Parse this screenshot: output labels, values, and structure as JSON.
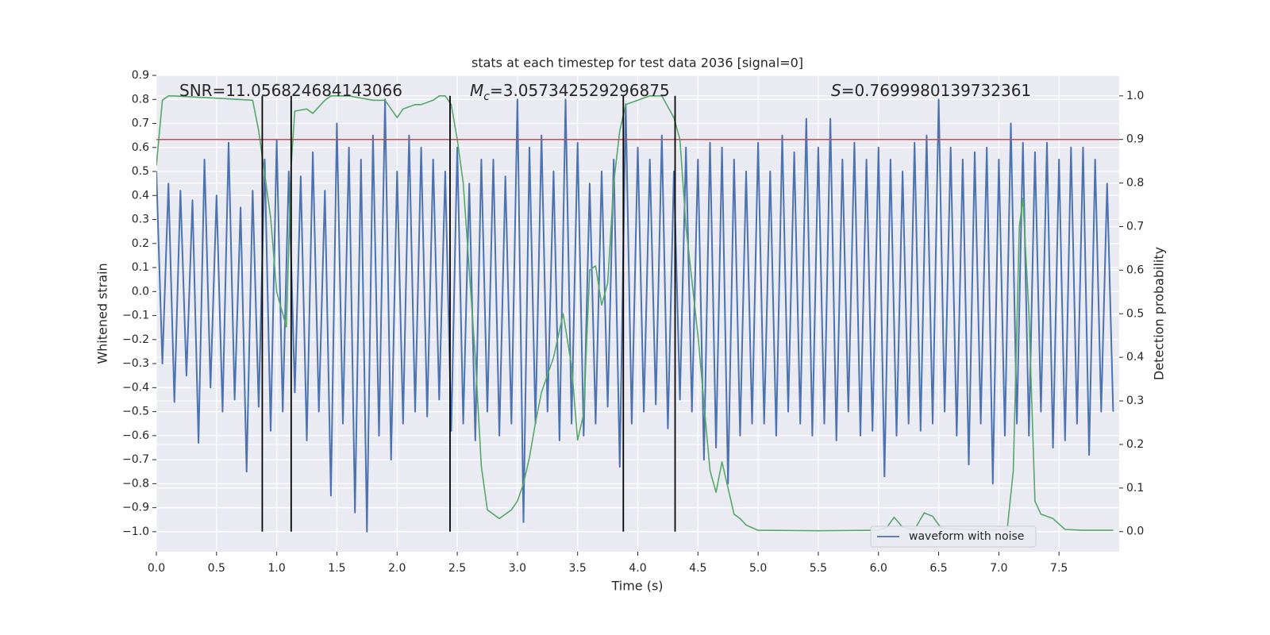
{
  "chart_data": {
    "type": "line",
    "title": "stats at each timestep for test data 2036 [signal=0]",
    "x_label": "Time (s)",
    "y_label": "Whitened strain",
    "y2_label": "Detection probability",
    "xlim": [
      0,
      8.0
    ],
    "ylim": [
      -1.083,
      0.9
    ],
    "y2lim": [
      -0.046,
      1.047
    ],
    "xticks": [
      {
        "value": 0,
        "label": "0.0"
      },
      0.5,
      {
        "value": 1,
        "label": "1.0"
      },
      1.5,
      {
        "value": 2,
        "label": "2.0"
      },
      2.5,
      {
        "value": 3,
        "label": "3.0"
      },
      3.5,
      {
        "value": 4,
        "label": "4.0"
      },
      4.5,
      {
        "value": 5,
        "label": "5.0"
      },
      5.5,
      {
        "value": 6,
        "label": "6.0"
      },
      6.5,
      {
        "value": 7,
        "label": "7.0"
      },
      7.5
    ],
    "yticks": [
      {
        "value": -1,
        "label": "−1.0"
      },
      {
        "value": -0.9,
        "label": "−0.9"
      },
      {
        "value": -0.8,
        "label": "−0.8"
      },
      {
        "value": -0.7,
        "label": "−0.7"
      },
      {
        "value": -0.6,
        "label": "−0.6"
      },
      {
        "value": -0.5,
        "label": "−0.5"
      },
      {
        "value": -0.4,
        "label": "−0.4"
      },
      {
        "value": -0.3,
        "label": "−0.3"
      },
      {
        "value": -0.2,
        "label": "−0.2"
      },
      {
        "value": -0.1,
        "label": "−0.1"
      },
      {
        "value": 0,
        "label": "0.0"
      },
      0.1,
      0.2,
      0.3,
      0.4,
      0.5,
      0.6,
      0.7,
      0.8,
      0.9
    ],
    "y2ticks": [
      {
        "value": 0,
        "label": "0.0"
      },
      0.1,
      0.2,
      0.3,
      0.4,
      0.5,
      0.6,
      0.7,
      0.8,
      0.9,
      {
        "value": 1,
        "label": "1.0"
      }
    ],
    "grid": true,
    "legend": "lower right",
    "series": [
      {
        "name": "waveform with noise",
        "color": "#4c72b0",
        "x": [
          0,
          0.05,
          0.1,
          0.15,
          0.2,
          0.25,
          0.3,
          0.35,
          0.4,
          0.45,
          0.5,
          0.55,
          0.6,
          0.65,
          0.7,
          0.75,
          0.8,
          0.85,
          0.9,
          0.95,
          1,
          1.05,
          1.1,
          1.15,
          1.2,
          1.25,
          1.3,
          1.35,
          1.4,
          1.45,
          1.5,
          1.55,
          1.6,
          1.65,
          1.7,
          1.75,
          1.8,
          1.85,
          1.9,
          1.95,
          2,
          2.05,
          2.1,
          2.15,
          2.2,
          2.25,
          2.3,
          2.35,
          2.4,
          2.45,
          2.5,
          2.55,
          2.6,
          2.65,
          2.7,
          2.75,
          2.8,
          2.85,
          2.9,
          2.95,
          3,
          3.05,
          3.1,
          3.15,
          3.2,
          3.25,
          3.3,
          3.35,
          3.4,
          3.45,
          3.5,
          3.55,
          3.6,
          3.65,
          3.7,
          3.75,
          3.8,
          3.85,
          3.9,
          3.95,
          4,
          4.05,
          4.1,
          4.15,
          4.2,
          4.25,
          4.3,
          4.35,
          4.4,
          4.45,
          4.5,
          4.55,
          4.6,
          4.65,
          4.7,
          4.75,
          4.8,
          4.85,
          4.9,
          4.95,
          5,
          5.05,
          5.1,
          5.15,
          5.2,
          5.25,
          5.3,
          5.35,
          5.4,
          5.45,
          5.5,
          5.55,
          5.6,
          5.65,
          5.7,
          5.75,
          5.8,
          5.85,
          5.9,
          5.95,
          6,
          6.05,
          6.1,
          6.15,
          6.2,
          6.25,
          6.3,
          6.35,
          6.4,
          6.45,
          6.5,
          6.55,
          6.6,
          6.65,
          6.7,
          6.75,
          6.8,
          6.85,
          6.9,
          6.95,
          7,
          7.05,
          7.1,
          7.15,
          7.2,
          7.25,
          7.3,
          7.35,
          7.4,
          7.45,
          7.5,
          7.55,
          7.6,
          7.65,
          7.7,
          7.75,
          7.8,
          7.85,
          7.9,
          7.95
        ],
        "values": [
          0.5,
          -0.3,
          0.45,
          -0.46,
          0.42,
          -0.35,
          0.38,
          -0.63,
          0.55,
          -0.4,
          0.4,
          -0.5,
          0.62,
          -0.45,
          0.35,
          -0.75,
          0.42,
          -0.48,
          0.55,
          -0.58,
          0.63,
          -0.5,
          0.5,
          -0.42,
          0.48,
          -0.62,
          0.58,
          -0.5,
          0.42,
          -0.85,
          0.7,
          -0.55,
          0.6,
          -0.92,
          0.55,
          -1.0,
          0.65,
          -0.6,
          0.8,
          -0.7,
          0.5,
          -0.55,
          0.65,
          -0.5,
          0.6,
          -0.52,
          0.55,
          -0.45,
          0.5,
          -0.58,
          0.6,
          -0.55,
          0.45,
          -0.62,
          0.55,
          -0.5,
          0.55,
          -0.6,
          0.48,
          -0.55,
          0.8,
          -0.96,
          0.6,
          -0.55,
          0.65,
          -0.5,
          0.5,
          -0.62,
          0.8,
          -0.55,
          0.62,
          -0.6,
          0.45,
          -0.55,
          0.5,
          -0.48,
          0.55,
          -0.73,
          0.78,
          -0.55,
          0.6,
          -0.5,
          0.55,
          -0.47,
          0.65,
          -0.57,
          0.5,
          -0.45,
          0.6,
          -0.5,
          0.55,
          -0.7,
          0.62,
          -0.65,
          0.6,
          -0.8,
          0.55,
          -0.6,
          0.5,
          -0.55,
          0.62,
          -0.55,
          0.5,
          -0.6,
          0.65,
          -0.5,
          0.58,
          -0.55,
          0.72,
          -0.6,
          0.6,
          -0.55,
          0.72,
          -0.62,
          0.55,
          -0.5,
          0.62,
          -0.6,
          0.55,
          -0.58,
          0.6,
          -0.77,
          0.55,
          -0.6,
          0.5,
          -0.55,
          0.62,
          -0.58,
          0.65,
          -0.55,
          0.8,
          -0.5,
          0.6,
          -0.6,
          0.55,
          -0.72,
          0.58,
          -0.55,
          0.6,
          -0.8,
          0.55,
          -0.6,
          0.7,
          -0.55,
          0.62,
          -0.6,
          0.58,
          -0.5,
          0.62,
          -0.65,
          0.55,
          -0.62,
          0.6,
          -0.55,
          0.6,
          -0.68,
          0.55,
          -0.5,
          0.45,
          -0.5
        ]
      },
      {
        "color": "#55a868",
        "axis": "y2",
        "x": [
          0,
          0.05,
          0.1,
          0.15,
          0.8,
          0.85,
          0.9,
          0.95,
          1.0,
          1.05,
          1.08,
          1.12,
          1.15,
          1.25,
          1.3,
          1.4,
          1.45,
          1.6,
          1.8,
          1.9,
          2.0,
          2.05,
          2.15,
          2.2,
          2.3,
          2.35,
          2.4,
          2.45,
          2.5,
          2.55,
          2.6,
          2.65,
          2.7,
          2.75,
          2.8,
          2.85,
          2.9,
          2.95,
          3.0,
          3.05,
          3.1,
          3.15,
          3.2,
          3.3,
          3.38,
          3.45,
          3.5,
          3.55,
          3.6,
          3.65,
          3.7,
          3.75,
          3.8,
          3.85,
          3.9,
          4.0,
          4.1,
          4.2,
          4.3,
          4.35,
          4.4,
          4.5,
          4.6,
          4.65,
          4.7,
          4.8,
          4.85,
          4.9,
          5.0,
          5.5,
          6.0,
          6.07,
          6.13,
          6.2,
          6.3,
          6.38,
          6.45,
          6.52,
          6.7,
          7.0,
          7.07,
          7.12,
          7.17,
          7.2,
          7.25,
          7.3,
          7.35,
          7.45,
          7.55,
          7.7,
          7.95
        ],
        "values": [
          0.84,
          0.99,
          1.0,
          1.0,
          0.99,
          0.92,
          0.82,
          0.72,
          0.55,
          0.5,
          0.47,
          0.84,
          0.965,
          0.97,
          0.96,
          0.99,
          1.0,
          1.0,
          0.99,
          0.99,
          0.95,
          0.97,
          0.98,
          0.98,
          0.99,
          1.0,
          1.0,
          0.98,
          0.9,
          0.8,
          0.6,
          0.4,
          0.15,
          0.05,
          0.04,
          0.03,
          0.04,
          0.05,
          0.07,
          0.11,
          0.17,
          0.25,
          0.32,
          0.4,
          0.5,
          0.38,
          0.21,
          0.27,
          0.6,
          0.61,
          0.52,
          0.57,
          0.8,
          0.92,
          0.98,
          0.99,
          1.0,
          1.0,
          0.95,
          0.9,
          0.7,
          0.45,
          0.14,
          0.09,
          0.16,
          0.04,
          0.03,
          0.015,
          0.003,
          0.002,
          0.003,
          0.01,
          0.033,
          0.01,
          0.005,
          0.043,
          0.035,
          0.008,
          0.005,
          0.004,
          0.006,
          0.14,
          0.7,
          0.765,
          0.5,
          0.07,
          0.04,
          0.03,
          0.005,
          0.003,
          0.003
        ]
      }
    ],
    "threshold": {
      "value": 0.9,
      "axis": "y2",
      "color": "#c44e52"
    },
    "vlines": {
      "x": [
        0.88,
        1.12,
        2.44,
        3.88,
        4.31
      ],
      "ymin": 0,
      "ymax": 1,
      "axis": "y2",
      "color": "#000000"
    },
    "annotations": [
      {
        "text": "SNR=11.056824684143066"
      },
      {
        "symbol": "M",
        "subscript": "c",
        "text": "=3.057342529296875"
      },
      {
        "symbol": "S",
        "text": "=0.7699980139732361"
      }
    ]
  }
}
